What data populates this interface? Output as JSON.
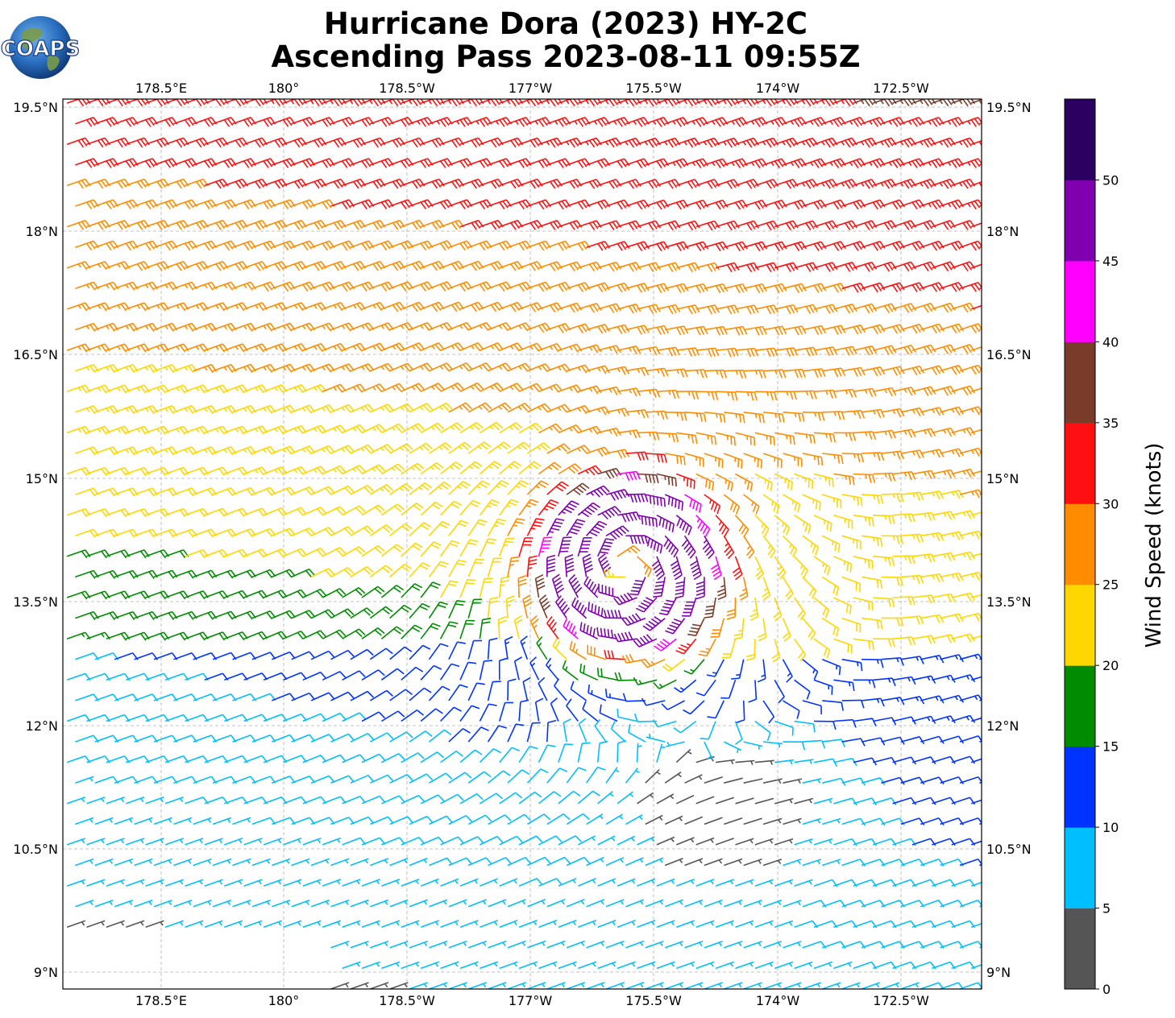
{
  "title_line1": "Hurricane Dora (2023) HY-2C",
  "title_line2": "Ascending Pass 2023-08-11 09:55Z",
  "logo_text": "COAPS",
  "x_ticks": [
    "178.5°E",
    "180°",
    "178.5°W",
    "177°W",
    "175.5°W",
    "174°W",
    "172.5°W"
  ],
  "y_ticks": [
    "19.5°N",
    "18°N",
    "16.5°N",
    "15°N",
    "13.5°N",
    "12°N",
    "10.5°N",
    "9°N"
  ],
  "colorbar": {
    "label": "Wind Speed (knots)",
    "ticks": [
      "0",
      "5",
      "10",
      "15",
      "20",
      "25",
      "30",
      "35",
      "40",
      "45",
      "50"
    ],
    "colors": [
      "#555555",
      "#00bfff",
      "#0033ff",
      "#008c00",
      "#ffd700",
      "#ff8c00",
      "#ff1010",
      "#7a3b2a",
      "#ff00ff",
      "#8000b0",
      "#2a0060"
    ]
  },
  "map_data": {
    "extent_lon_east": [
      177.3,
      188.4
    ],
    "extent_lat": [
      8.8,
      19.6
    ],
    "storm_center": {
      "lon": 184.1,
      "lat": 13.9
    },
    "barb_spacing_deg": 0.25
  }
}
